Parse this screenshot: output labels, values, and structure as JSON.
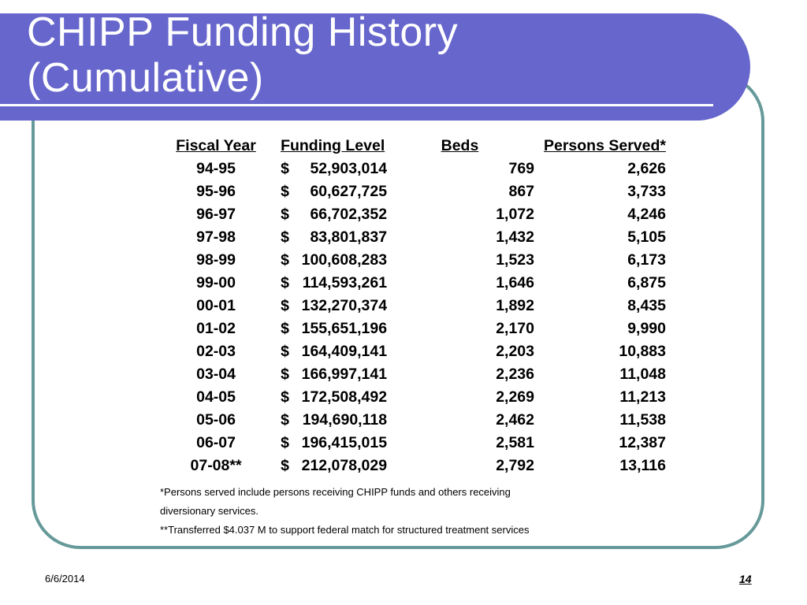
{
  "slide": {
    "title_line1": "CHIPP Funding History",
    "title_line2": "(Cumulative)",
    "accent_color": "#6666cc",
    "frame_color": "#669999"
  },
  "table": {
    "headers": {
      "year": "Fiscal Year",
      "funding": "Funding Level",
      "beds": "Beds",
      "persons": "Persons Served*"
    },
    "rows": [
      {
        "year": "94-95",
        "currency": "$",
        "funding": "52,903,014",
        "beds": "769",
        "persons": "2,626"
      },
      {
        "year": "95-96",
        "currency": "$",
        "funding": "60,627,725",
        "beds": "867",
        "persons": "3,733"
      },
      {
        "year": "96-97",
        "currency": "$",
        "funding": "66,702,352",
        "beds": "1,072",
        "persons": "4,246"
      },
      {
        "year": "97-98",
        "currency": "$",
        "funding": "83,801,837",
        "beds": "1,432",
        "persons": "5,105"
      },
      {
        "year": "98-99",
        "currency": "$",
        "funding": "100,608,283",
        "beds": "1,523",
        "persons": "6,173"
      },
      {
        "year": "99-00",
        "currency": "$",
        "funding": "114,593,261",
        "beds": "1,646",
        "persons": "6,875"
      },
      {
        "year": "00-01",
        "currency": "$",
        "funding": "132,270,374",
        "beds": "1,892",
        "persons": "8,435"
      },
      {
        "year": "01-02",
        "currency": "$",
        "funding": "155,651,196",
        "beds": "2,170",
        "persons": "9,990"
      },
      {
        "year": "02-03",
        "currency": "$",
        "funding": "164,409,141",
        "beds": "2,203",
        "persons": "10,883"
      },
      {
        "year": "03-04",
        "currency": "$",
        "funding": "166,997,141",
        "beds": "2,236",
        "persons": "11,048"
      },
      {
        "year": "04-05",
        "currency": "$",
        "funding": "172,508,492",
        "beds": "2,269",
        "persons": "11,213"
      },
      {
        "year": "05-06",
        "currency": "$",
        "funding": "194,690,118",
        "beds": "2,462",
        "persons": "11,538"
      },
      {
        "year": "06-07",
        "currency": "$",
        "funding": "196,415,015",
        "beds": "2,581",
        "persons": "12,387"
      },
      {
        "year": "07-08**",
        "currency": "$",
        "funding": "212,078,029",
        "beds": "2,792",
        "persons": "13,116"
      }
    ]
  },
  "notes": {
    "line1": "*Persons served include persons receiving CHIPP funds and others receiving",
    "line2": "diversionary services.",
    "line3": "**Transferred $4.037 M to support federal match for structured treatment services"
  },
  "footer": {
    "date": "6/6/2014",
    "page_number": "14"
  }
}
